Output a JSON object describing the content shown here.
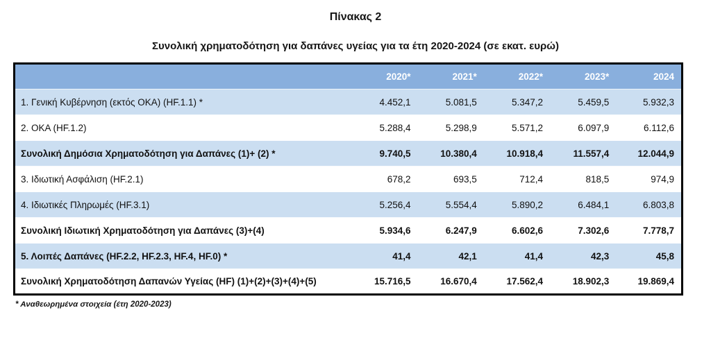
{
  "page": {
    "title": "Πίνακας 2",
    "subtitle": "Συνολική χρηματοδότηση για δαπάνες υγείας για τα έτη 2020-2024 (σε εκατ. ευρώ)",
    "footnote": "* Αναθεωρημένα στοιχεία (έτη 2020-2023)"
  },
  "colors": {
    "header_bg": "#89AFDD",
    "stripe_bg": "#CBDEF1",
    "row_bg": "#FFFFFF",
    "border": "#000000",
    "header_text": "#FFFFFF",
    "body_text": "#111111"
  },
  "table": {
    "label_column_header": "",
    "columns": [
      "2020*",
      "2021*",
      "2022*",
      "2023*",
      "2024"
    ],
    "rows": [
      {
        "label": "1. Γενική Κυβέρνηση (εκτός ΟΚΑ) (HF.1.1) *",
        "values": [
          "4.452,1",
          "5.081,5",
          "5.347,2",
          "5.459,5",
          "5.932,3"
        ],
        "bold": false
      },
      {
        "label": "2. ΟΚΑ (HF.1.2)",
        "values": [
          "5.288,4",
          "5.298,9",
          "5.571,2",
          "6.097,9",
          "6.112,6"
        ],
        "bold": false
      },
      {
        "label": "Συνολική Δημόσια Χρηματοδότηση για Δαπάνες (1)+ (2) *",
        "values": [
          "9.740,5",
          "10.380,4",
          "10.918,4",
          "11.557,4",
          "12.044,9"
        ],
        "bold": true
      },
      {
        "label": "3. Ιδιωτική Ασφάλιση (HF.2.1)",
        "values": [
          "678,2",
          "693,5",
          "712,4",
          "818,5",
          "974,9"
        ],
        "bold": false
      },
      {
        "label": "4. Ιδιωτικές Πληρωμές (HF.3.1)",
        "values": [
          "5.256,4",
          "5.554,4",
          "5.890,2",
          "6.484,1",
          "6.803,8"
        ],
        "bold": false
      },
      {
        "label": "Συνολική Ιδιωτική Χρηματοδότηση για Δαπάνες (3)+(4)",
        "values": [
          "5.934,6",
          "6.247,9",
          "6.602,6",
          "7.302,6",
          "7.778,7"
        ],
        "bold": true
      },
      {
        "label": "5. Λοιπές Δαπάνες (HF.2.2, HF.2.3, HF.4, HF.0) *",
        "values": [
          "41,4",
          "42,1",
          "41,4",
          "42,3",
          "45,8"
        ],
        "bold": true
      },
      {
        "label": "Συνολική Χρηματοδότηση Δαπανών Υγείας (HF) (1)+(2)+(3)+(4)+(5)",
        "values": [
          "15.716,5",
          "16.670,4",
          "17.562,4",
          "18.902,3",
          "19.869,4"
        ],
        "bold": true
      }
    ]
  }
}
